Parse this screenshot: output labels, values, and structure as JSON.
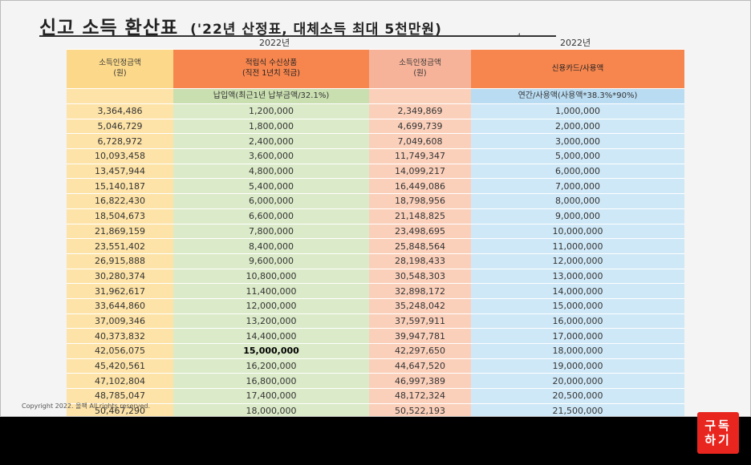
{
  "title": {
    "main": "신고 소득 환산표",
    "sub": "('22년 산정표, 대체소득 최대 5천만원)"
  },
  "year_left": "2022년",
  "year_right": "2022년",
  "tick_mark": "⁴",
  "table": {
    "headers": {
      "col1": "소득인정금액\n(원)",
      "col2": "적립식 수신상품\n(직전 1년치 적금)",
      "col3": "소득인정금액\n(원)",
      "col4": "신용카드/사용액"
    },
    "subheaders": {
      "col2": "납입액(최근1년 납부금액/32.1%)",
      "col4": "연간/사용액(사용액*38.3%*90%)"
    },
    "rows": [
      [
        "3,364,486",
        "1,200,000",
        "2,349,869",
        "1,000,000"
      ],
      [
        "5,046,729",
        "1,800,000",
        "4,699,739",
        "2,000,000"
      ],
      [
        "6,728,972",
        "2,400,000",
        "7,049,608",
        "3,000,000"
      ],
      [
        "10,093,458",
        "3,600,000",
        "11,749,347",
        "5,000,000"
      ],
      [
        "13,457,944",
        "4,800,000",
        "14,099,217",
        "6,000,000"
      ],
      [
        "15,140,187",
        "5,400,000",
        "16,449,086",
        "7,000,000"
      ],
      [
        "16,822,430",
        "6,000,000",
        "18,798,956",
        "8,000,000"
      ],
      [
        "18,504,673",
        "6,600,000",
        "21,148,825",
        "9,000,000"
      ],
      [
        "21,869,159",
        "7,800,000",
        "23,498,695",
        "10,000,000"
      ],
      [
        "23,551,402",
        "8,400,000",
        "25,848,564",
        "11,000,000"
      ],
      [
        "26,915,888",
        "9,600,000",
        "28,198,433",
        "12,000,000"
      ],
      [
        "30,280,374",
        "10,800,000",
        "30,548,303",
        "13,000,000"
      ],
      [
        "31,962,617",
        "11,400,000",
        "32,898,172",
        "14,000,000"
      ],
      [
        "33,644,860",
        "12,000,000",
        "35,248,042",
        "15,000,000"
      ],
      [
        "37,009,346",
        "13,200,000",
        "37,597,911",
        "16,000,000"
      ],
      [
        "40,373,832",
        "14,400,000",
        "39,947,781",
        "17,000,000"
      ],
      [
        "42,056,075",
        "15,000,000",
        "42,297,650",
        "18,000,000"
      ],
      [
        "45,420,561",
        "16,200,000",
        "44,647,520",
        "19,000,000"
      ],
      [
        "47,102,804",
        "16,800,000",
        "46,997,389",
        "20,000,000"
      ],
      [
        "48,785,047",
        "17,400,000",
        "48,172,324",
        "20,500,000"
      ],
      [
        "50,467,290",
        "18,000,000",
        "50,522,193",
        "21,500,000"
      ]
    ],
    "highlight": {
      "row": 16,
      "col": 1
    }
  },
  "copyright": "Copyright 2022. 올팩 All rights reserved.",
  "subscribe_button": {
    "line1": "구독",
    "line2": "하기"
  }
}
